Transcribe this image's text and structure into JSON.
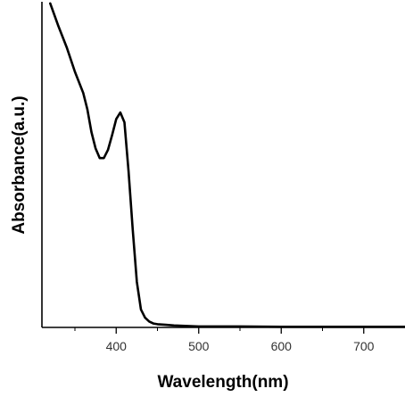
{
  "chart_data": {
    "type": "line",
    "title": "",
    "xlabel": "Wavelength(nm)",
    "ylabel": "Absorbance(a.u.)",
    "xlim": [
      310,
      750
    ],
    "ylim": [
      0,
      1
    ],
    "xticks": [
      400,
      500,
      600,
      700
    ],
    "x_minor_ticks": [
      350,
      450,
      550,
      650
    ],
    "y_tick_labels": false,
    "grid": false,
    "legend": "none",
    "line_color": "#000000",
    "series": [
      {
        "x": [
          320,
          330,
          340,
          350,
          360,
          365,
          370,
          375,
          380,
          385,
          390,
          395,
          400,
          405,
          410,
          415,
          420,
          425,
          430,
          435,
          440,
          445,
          450,
          460,
          470,
          480,
          490,
          500,
          550,
          600,
          650,
          700,
          750
        ],
        "y": [
          0.995,
          0.925,
          0.86,
          0.785,
          0.72,
          0.67,
          0.6,
          0.55,
          0.52,
          0.52,
          0.545,
          0.59,
          0.64,
          0.66,
          0.63,
          0.48,
          0.3,
          0.14,
          0.055,
          0.03,
          0.018,
          0.012,
          0.01,
          0.008,
          0.006,
          0.005,
          0.004,
          0.003,
          0.003,
          0.002,
          0.002,
          0.002,
          0.002
        ]
      }
    ]
  }
}
